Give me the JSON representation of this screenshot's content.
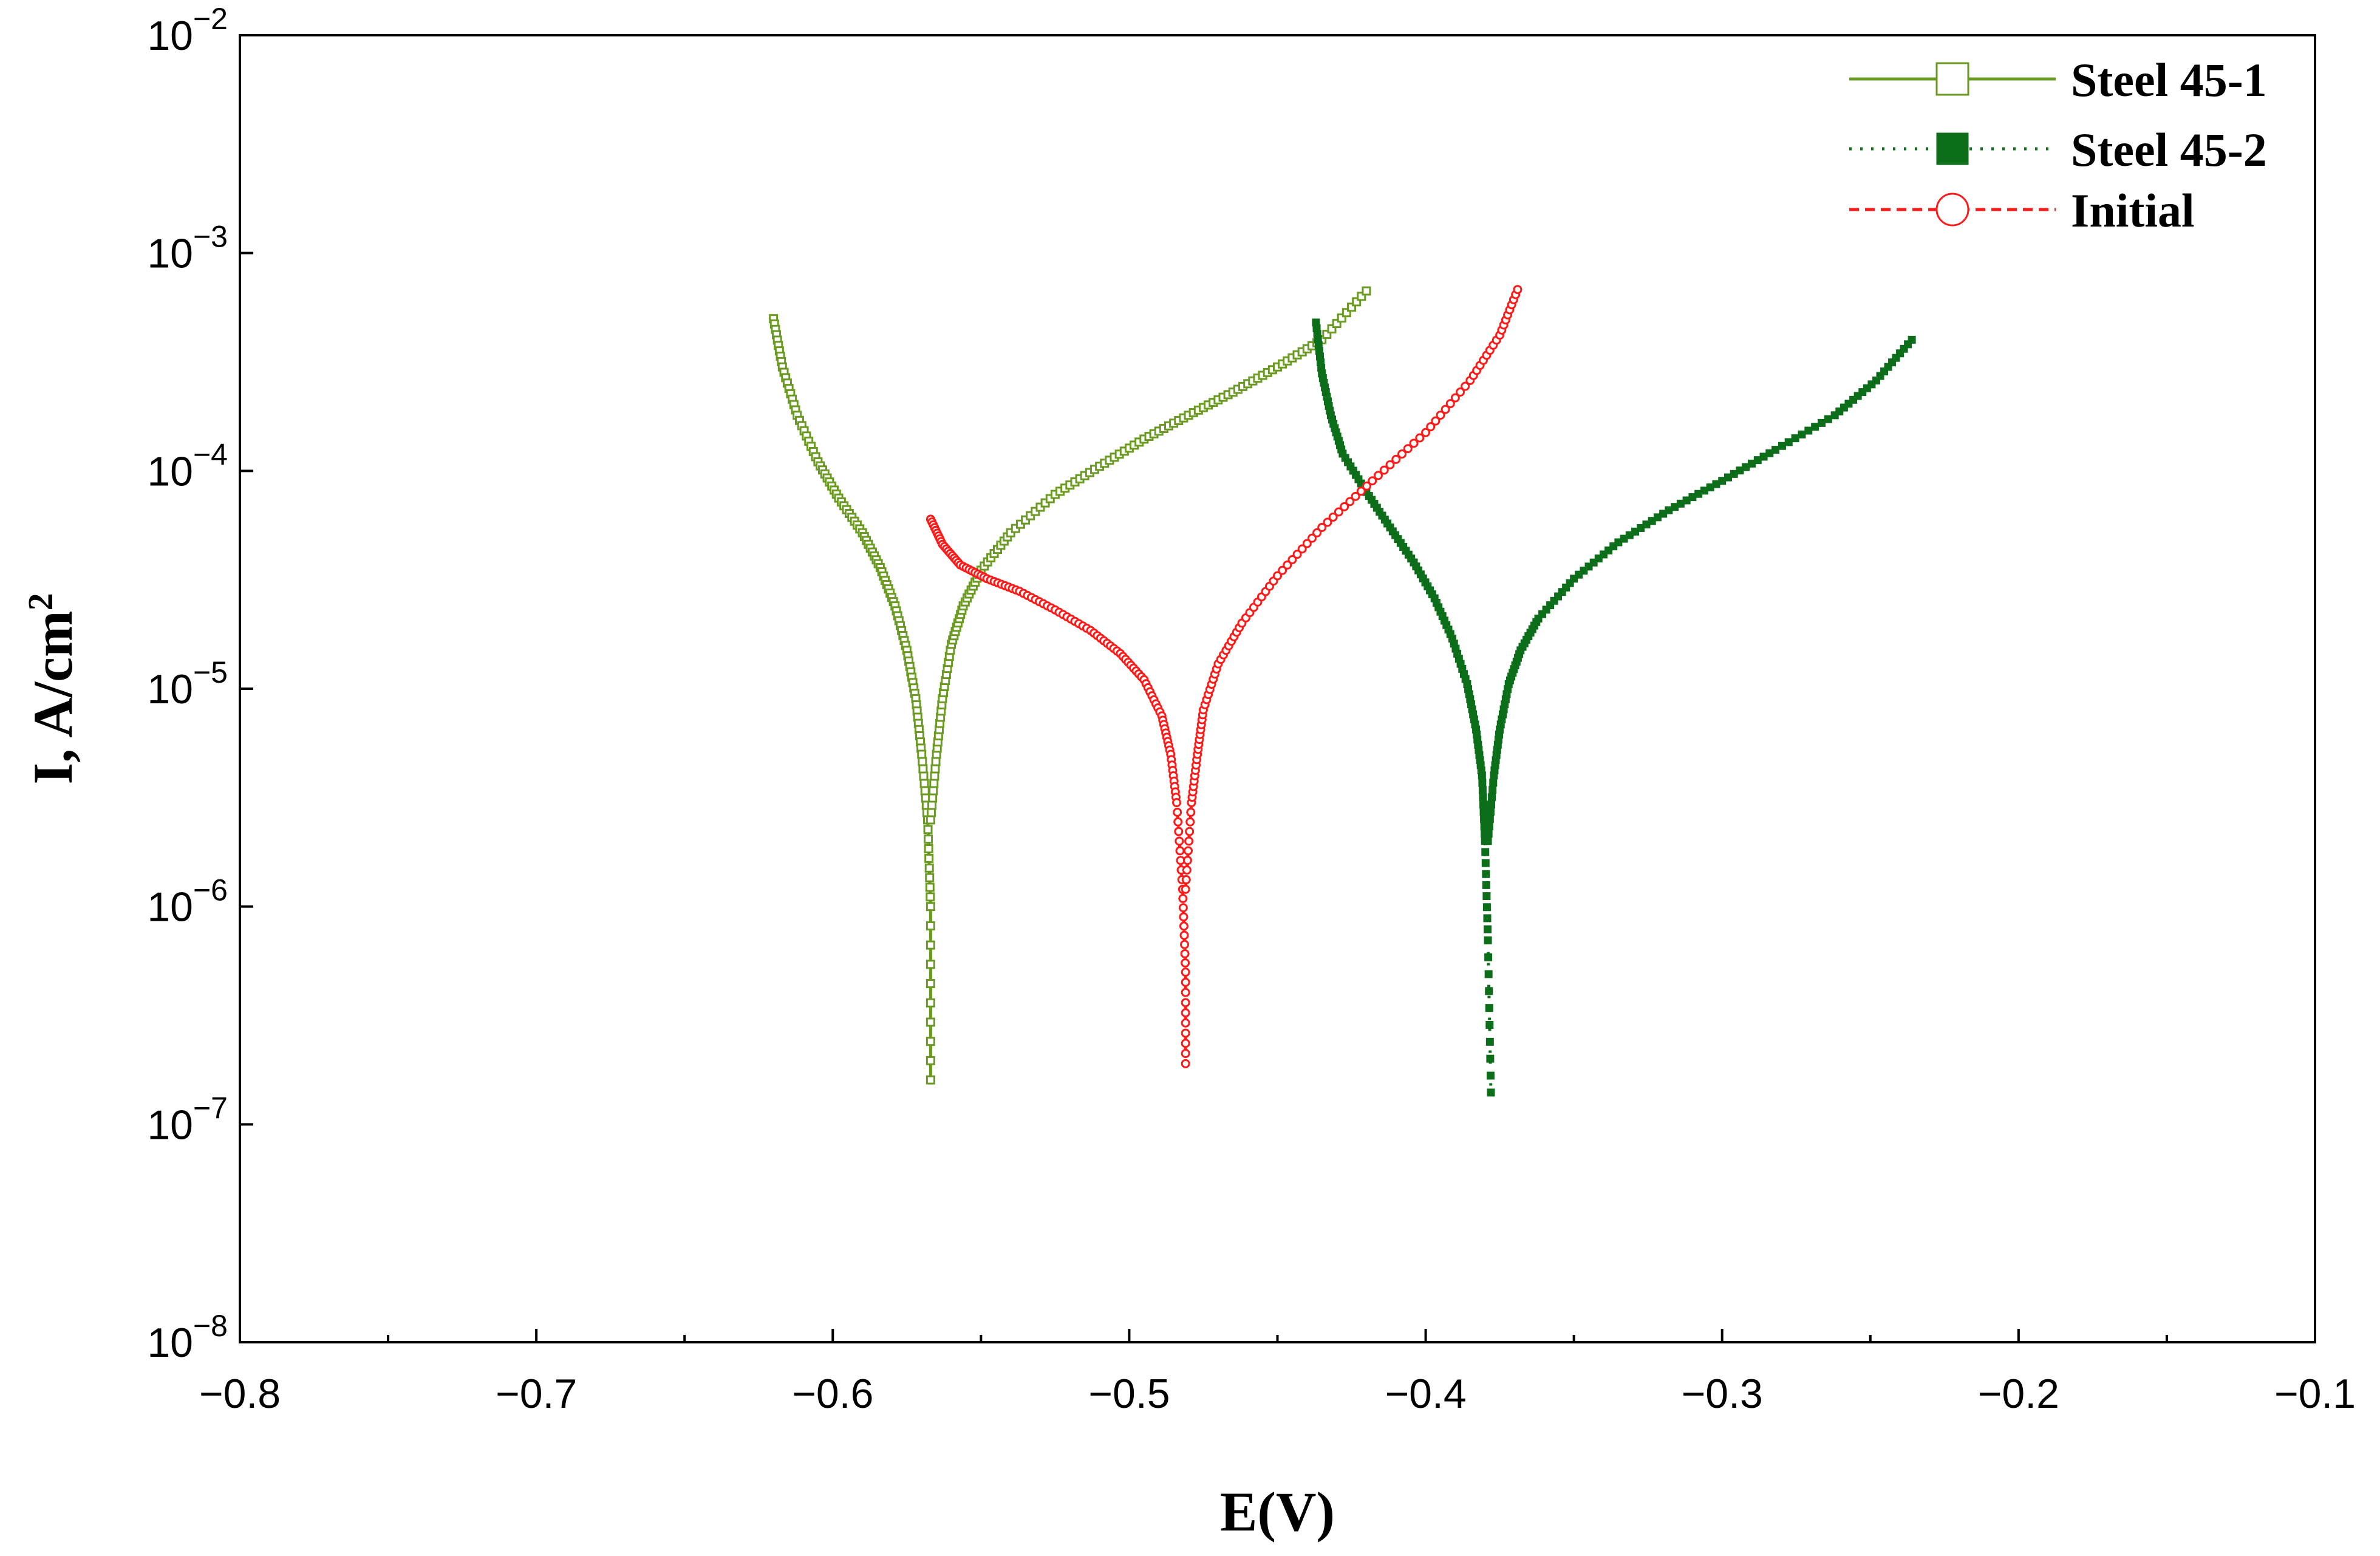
{
  "chart_data": {
    "type": "line",
    "title": "",
    "xlabel": "E(V)",
    "ylabel": "I, A/cm",
    "ylabel_sup": "2",
    "x_scale": "linear",
    "y_scale": "log",
    "xlim": [
      -0.8,
      -0.1
    ],
    "ylim": [
      1e-08,
      0.01
    ],
    "x_ticks": [
      {
        "value": -0.8,
        "label": "−0.8"
      },
      {
        "value": -0.7,
        "label": "−0.7"
      },
      {
        "value": -0.6,
        "label": "−0.6"
      },
      {
        "value": -0.5,
        "label": "−0.5"
      },
      {
        "value": -0.4,
        "label": "−0.4"
      },
      {
        "value": -0.3,
        "label": "−0.3"
      },
      {
        "value": -0.2,
        "label": "−0.2"
      },
      {
        "value": -0.1,
        "label": "−0.1"
      }
    ],
    "x_minor_ticks": [
      -0.75,
      -0.65,
      -0.55,
      -0.45,
      -0.35,
      -0.25,
      -0.15
    ],
    "y_ticks": [
      {
        "value": 0.01,
        "base": "10",
        "exp": "−2"
      },
      {
        "value": 0.001,
        "base": "10",
        "exp": "−3"
      },
      {
        "value": 0.0001,
        "base": "10",
        "exp": "−4"
      },
      {
        "value": 1e-05,
        "base": "10",
        "exp": "−5"
      },
      {
        "value": 1e-06,
        "base": "10",
        "exp": "−6"
      },
      {
        "value": 1e-07,
        "base": "10",
        "exp": "−7"
      },
      {
        "value": 1e-08,
        "base": "10",
        "exp": "−8"
      }
    ],
    "legend_position": "top-right",
    "series": [
      {
        "name": "Steel 45-1",
        "color": "#6b9a22",
        "line_style": "solid",
        "marker": "open-square",
        "cathodic": [
          [
            -0.62,
            0.0005
          ],
          [
            -0.617,
            0.0003
          ],
          [
            -0.612,
            0.00018
          ],
          [
            -0.605,
            0.00011
          ],
          [
            -0.598,
            7.5e-05
          ],
          [
            -0.59,
            5.2e-05
          ],
          [
            -0.584,
            3.6e-05
          ],
          [
            -0.579,
            2.4e-05
          ],
          [
            -0.575,
            1.5e-05
          ],
          [
            -0.572,
            9e-06
          ],
          [
            -0.57,
            5e-06
          ],
          [
            -0.568,
            2.5e-06
          ],
          [
            -0.567,
            1e-06
          ],
          [
            -0.567,
            1.6e-07
          ]
        ],
        "anodic": [
          [
            -0.567,
            2.5e-06
          ],
          [
            -0.565,
            5e-06
          ],
          [
            -0.563,
            9e-06
          ],
          [
            -0.56,
            1.6e-05
          ],
          [
            -0.556,
            2.4e-05
          ],
          [
            -0.55,
            3.5e-05
          ],
          [
            -0.54,
            5.2e-05
          ],
          [
            -0.525,
            7.8e-05
          ],
          [
            -0.51,
            0.000105
          ],
          [
            -0.495,
            0.00014
          ],
          [
            -0.48,
            0.00018
          ],
          [
            -0.465,
            0.00023
          ],
          [
            -0.45,
            0.0003
          ],
          [
            -0.435,
            0.0004
          ],
          [
            -0.42,
            0.00067
          ]
        ]
      },
      {
        "name": "Steel 45-2",
        "color": "#0d6e1a",
        "line_style": "dotted",
        "marker": "filled-square",
        "cathodic": [
          [
            -0.437,
            0.00048
          ],
          [
            -0.435,
            0.00028
          ],
          [
            -0.432,
            0.00018
          ],
          [
            -0.428,
            0.00012
          ],
          [
            -0.42,
            8e-05
          ],
          [
            -0.412,
            5.5e-05
          ],
          [
            -0.404,
            3.8e-05
          ],
          [
            -0.397,
            2.6e-05
          ],
          [
            -0.391,
            1.7e-05
          ],
          [
            -0.386,
            1.05e-05
          ],
          [
            -0.383,
            6.5e-06
          ],
          [
            -0.381,
            4e-06
          ],
          [
            -0.38,
            2e-06
          ],
          [
            -0.379,
            7e-07
          ],
          [
            -0.378,
            1.4e-07
          ]
        ],
        "anodic": [
          [
            -0.379,
            2e-06
          ],
          [
            -0.377,
            4e-06
          ],
          [
            -0.375,
            6.5e-06
          ],
          [
            -0.372,
            1.05e-05
          ],
          [
            -0.368,
            1.5e-05
          ],
          [
            -0.362,
            2.1e-05
          ],
          [
            -0.35,
            3.2e-05
          ],
          [
            -0.335,
            4.7e-05
          ],
          [
            -0.318,
            6.6e-05
          ],
          [
            -0.3,
            9e-05
          ],
          [
            -0.282,
            0.000125
          ],
          [
            -0.262,
            0.00018
          ],
          [
            -0.248,
            0.00026
          ],
          [
            -0.236,
            0.0004
          ]
        ]
      },
      {
        "name": "Initial",
        "color": "#ff1a1a",
        "line_style": "dashed",
        "marker": "open-circle",
        "cathodic": [
          [
            -0.567,
            6e-05
          ],
          [
            -0.563,
            4.6e-05
          ],
          [
            -0.557,
            3.7e-05
          ],
          [
            -0.548,
            3.2e-05
          ],
          [
            -0.537,
            2.8e-05
          ],
          [
            -0.525,
            2.3e-05
          ],
          [
            -0.513,
            1.85e-05
          ],
          [
            -0.503,
            1.45e-05
          ],
          [
            -0.495,
            1.1e-05
          ],
          [
            -0.489,
            7.5e-06
          ],
          [
            -0.486,
            5e-06
          ],
          [
            -0.484,
            3e-06
          ],
          [
            -0.482,
            1.2e-06
          ],
          [
            -0.481,
            5e-07
          ],
          [
            -0.481,
            1.9e-07
          ]
        ],
        "anodic": [
          [
            -0.481,
            1.2e-06
          ],
          [
            -0.479,
            3e-06
          ],
          [
            -0.477,
            5e-06
          ],
          [
            -0.475,
            8e-06
          ],
          [
            -0.47,
            1.3e-05
          ],
          [
            -0.462,
            2e-05
          ],
          [
            -0.45,
            3.3e-05
          ],
          [
            -0.435,
            5.5e-05
          ],
          [
            -0.418,
            9e-05
          ],
          [
            -0.4,
            0.00015
          ],
          [
            -0.385,
            0.00026
          ],
          [
            -0.375,
            0.00042
          ],
          [
            -0.369,
            0.00068
          ]
        ]
      }
    ]
  }
}
